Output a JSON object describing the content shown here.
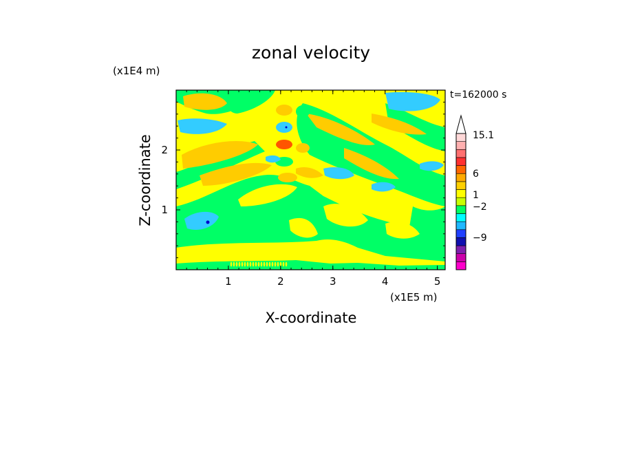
{
  "chart_data": {
    "type": "heatmap",
    "title": "zonal velocity",
    "xlabel": "X-coordinate",
    "ylabel": "Z-coordinate",
    "x_unit": "(x1E5 m)",
    "y_unit": "(x1E4 m)",
    "time_label": "t=162000 s",
    "xlim": [
      0,
      5.15
    ],
    "ylim": [
      0,
      3.0
    ],
    "x_ticks": [
      "1",
      "2",
      "3",
      "4",
      "5"
    ],
    "x_tick_values": [
      1,
      2,
      3,
      4,
      5
    ],
    "y_ticks": [
      "1",
      "2"
    ],
    "y_tick_values": [
      1,
      2
    ],
    "colorbar": {
      "labels": [
        {
          "text": "15.1",
          "value": 15.1
        },
        {
          "text": "6",
          "value": 6
        },
        {
          "text": "1",
          "value": 1
        },
        {
          "text": "−2",
          "value": -2
        },
        {
          "text": "−9",
          "value": -9
        }
      ],
      "levels": [
        {
          "color": "#ff00cc"
        },
        {
          "color": "#cc00aa"
        },
        {
          "color": "#7f1fae"
        },
        {
          "color": "#1010b0"
        },
        {
          "color": "#2040ff"
        },
        {
          "color": "#1fb8ff"
        },
        {
          "color": "#00ffff"
        },
        {
          "color": "#00ff60"
        },
        {
          "color": "#c8ff00"
        },
        {
          "color": "#ffff00"
        },
        {
          "color": "#ffd000"
        },
        {
          "color": "#ffaa00"
        },
        {
          "color": "#ff6600"
        },
        {
          "color": "#ff3030"
        },
        {
          "color": "#ff7070"
        },
        {
          "color": "#ffb0b0"
        },
        {
          "color": "#ffd8d8"
        }
      ]
    },
    "colors": {
      "green": "#00ff66",
      "yellow": "#ffff00",
      "orange": "#ffcc00",
      "cyan": "#33ccff",
      "red": "#ff5500",
      "blue": "#0000cc"
    }
  }
}
